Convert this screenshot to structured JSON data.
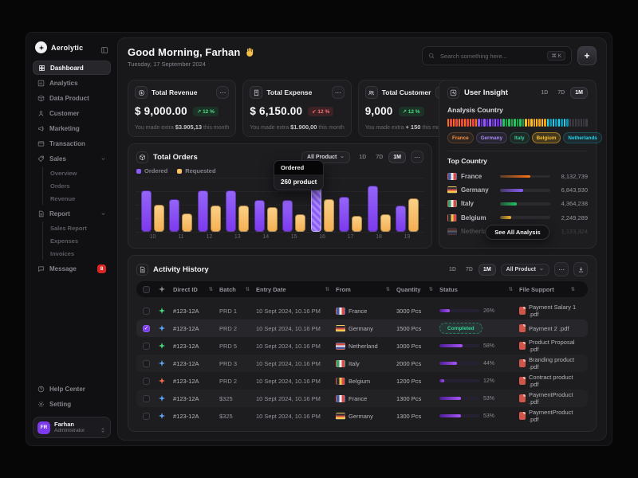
{
  "app": {
    "name": "Aerolytic"
  },
  "sidebar": {
    "items": [
      {
        "label": "Dashboard",
        "icon": "grid",
        "active": true
      },
      {
        "label": "Analytics",
        "icon": "chart"
      },
      {
        "label": "Data Product",
        "icon": "box"
      },
      {
        "label": "Customer",
        "icon": "user"
      },
      {
        "label": "Marketing",
        "icon": "megaphone"
      },
      {
        "label": "Transaction",
        "icon": "card"
      },
      {
        "label": "Sales",
        "icon": "tag",
        "children": [
          "Overview",
          "Orders",
          "Revenue"
        ]
      },
      {
        "label": "Report",
        "icon": "doc",
        "children": [
          "Sales Report",
          "Expenses",
          "Invoices"
        ]
      },
      {
        "label": "Message",
        "icon": "chat",
        "badge": "8"
      }
    ],
    "footer": [
      {
        "label": "Help Center",
        "icon": "help"
      },
      {
        "label": "Setting",
        "icon": "gear"
      }
    ],
    "user": {
      "initials": "FR",
      "name": "Farhan",
      "role": "Administrator"
    }
  },
  "header": {
    "greeting": "Good Morning, Farhan",
    "wave_emoji": "👋",
    "date": "Tuesday, 17 September 2024",
    "search_placeholder": "Search something here...",
    "search_shortcut": "⌘ K",
    "add_label": "+"
  },
  "stats": [
    {
      "title": "Total Revenue",
      "icon": "coin",
      "value": "$ 9,000.00",
      "trend": "12 %",
      "direction": "up",
      "note_prefix": "You made extra",
      "note_strong": "$3.905,13",
      "note_suffix": "this month"
    },
    {
      "title": "Total Expense",
      "icon": "receipt",
      "value": "$ 6,150.00",
      "trend": "12 %",
      "direction": "down",
      "note_prefix": "You made extra",
      "note_strong": "$1.900,00",
      "note_suffix": "this month"
    },
    {
      "title": "Total Customer",
      "icon": "users",
      "value": "9,000",
      "trend": "12 %",
      "direction": "up",
      "note_prefix": "You made extra",
      "note_strong": "+ 150",
      "note_suffix": "this month"
    }
  ],
  "orders": {
    "title": "Total Orders",
    "filter_label": "All Product",
    "ranges": [
      "1D",
      "7D",
      "1M"
    ],
    "active_range": "1M",
    "legend": [
      {
        "label": "Ordered",
        "color": "#8b5cf6"
      },
      {
        "label": "Requested",
        "color": "#f7c164"
      }
    ],
    "tooltip": {
      "label": "Ordered",
      "value": "260 product"
    },
    "chart_data": {
      "type": "bar",
      "categories": [
        "10",
        "11",
        "12",
        "13",
        "14",
        "15",
        "16",
        "17",
        "18",
        "19"
      ],
      "series": [
        {
          "name": "Ordered",
          "color": "#8b5cf6",
          "values": [
            76,
            60,
            77,
            77,
            59,
            59,
            100,
            64,
            86,
            48
          ]
        },
        {
          "name": "Requested",
          "color": "#f7c164",
          "values": [
            50,
            34,
            49,
            48,
            45,
            32,
            60,
            30,
            33,
            62
          ]
        }
      ],
      "value_note": "bar heights in % of max; highlighted Ordered bar at x=16 equals 260 product",
      "highlight_category": "16",
      "highlight_value": 260,
      "unit": "product",
      "grid": "dotted-horizontal",
      "legend_position": "top-left"
    }
  },
  "insight": {
    "title": "User Insight",
    "ranges": [
      "1D",
      "7D",
      "1M"
    ],
    "active_range": "1M",
    "analysis_label": "Analysis Country",
    "segment_groups": [
      {
        "country": "France",
        "color": "#f97316",
        "color2": "#ef4444",
        "count": 11
      },
      {
        "country": "Germany",
        "color": "#8b5cf6",
        "color2": "#6d28d9",
        "count": 9
      },
      {
        "country": "Italy",
        "color": "#22c55e",
        "color2": "#16a34a",
        "count": 8
      },
      {
        "country": "Belgium",
        "color": "#fbbf24",
        "color2": "#f59e0b",
        "count": 8
      },
      {
        "country": "Netherlands",
        "color": "#22d3ee",
        "color2": "#0891b2",
        "count": 8
      },
      {
        "country": "Other",
        "color": "#3d3d44",
        "color2": "#34343a",
        "count": 7
      }
    ],
    "pills": [
      {
        "label": "France",
        "color": "#fb923c"
      },
      {
        "label": "Germany",
        "color": "#a78bfa"
      },
      {
        "label": "Italy",
        "color": "#34d399"
      },
      {
        "label": "Belgium",
        "color": "#fbbf24",
        "highlight": true
      },
      {
        "label": "Netherlands",
        "color": "#22d3ee"
      }
    ],
    "top_label": "Top Country",
    "countries": [
      {
        "name": "France",
        "flag": "fr",
        "value": "8,132,739",
        "pct": 60,
        "color": "#f97316"
      },
      {
        "name": "Germany",
        "flag": "de",
        "value": "6,843,930",
        "pct": 46,
        "color": "#8b5cf6"
      },
      {
        "name": "Italy",
        "flag": "it",
        "value": "4,364,238",
        "pct": 33,
        "color": "#22c55e"
      },
      {
        "name": "Belgium",
        "flag": "be",
        "value": "2,249,289",
        "pct": 22,
        "color": "#f5b52e"
      },
      {
        "name": "Netherland",
        "flag": "nl",
        "value": "1,123,324",
        "pct": 14,
        "color": "#22d3ee",
        "faded": true
      }
    ],
    "see_all_label": "See All Analysis"
  },
  "activity": {
    "title": "Activity History",
    "ranges": [
      "1D",
      "7D",
      "1M"
    ],
    "active_range": "1M",
    "filter_label": "All Product",
    "columns": [
      "Direct ID",
      "Batch",
      "Entry Date",
      "From",
      "Quantity",
      "Status",
      "File Support"
    ],
    "rows": [
      {
        "checked": false,
        "spark": "#4ade80",
        "id": "#123-12A",
        "batch": "PRD 1",
        "date": "10 Sept 2024, 10.16 PM",
        "from": "France",
        "flag": "fr",
        "qty": "3000 Pcs",
        "status": "26%",
        "progress": 26,
        "file": "Payment Salary 1 .pdf"
      },
      {
        "checked": true,
        "spark": "#60a5fa",
        "id": "#123-12A",
        "batch": "PRD 2",
        "date": "10 Sept 2024, 10.16 PM",
        "from": "Germany",
        "flag": "de",
        "qty": "1500 Pcs",
        "status": "Completed",
        "progress": null,
        "file": "Payment 2 .pdf"
      },
      {
        "checked": false,
        "spark": "#4ade80",
        "id": "#123-12A",
        "batch": "PRD 5",
        "date": "10 Sept 2024, 10.16 PM",
        "from": "Netherland",
        "flag": "nl",
        "qty": "1000 Pcs",
        "status": "58%",
        "progress": 58,
        "file": "Product Proposal .pdf"
      },
      {
        "checked": false,
        "spark": "#60a5fa",
        "id": "#123-12A",
        "batch": "PRD 3",
        "date": "10 Sept 2024, 10.16 PM",
        "from": "Italy",
        "flag": "it",
        "qty": "2000 Pcs",
        "status": "44%",
        "progress": 44,
        "file": "Branding product .pdf"
      },
      {
        "checked": false,
        "spark": "#fb7145",
        "id": "#123-12A",
        "batch": "PRD 2",
        "date": "10 Sept 2024, 10.16 PM",
        "from": "Belgium",
        "flag": "be",
        "qty": "1200 Pcs",
        "status": "12%",
        "progress": 12,
        "file": "Contract product .pdf"
      },
      {
        "checked": false,
        "spark": "#60a5fa",
        "id": "#123-12A",
        "batch": "$325",
        "date": "10 Sept 2024, 10.16 PM",
        "from": "France",
        "flag": "fr",
        "qty": "1300 Pcs",
        "status": "53%",
        "progress": 53,
        "file": "PaymentProduct .pdf"
      },
      {
        "checked": false,
        "spark": "#60a5fa",
        "id": "#123-12A",
        "batch": "$325",
        "date": "10 Sept 2024, 10.16 PM",
        "from": "Germany",
        "flag": "de",
        "qty": "1300 Pcs",
        "status": "53%",
        "progress": 53,
        "file": "PaymentProduct .pdf"
      }
    ]
  },
  "colors": {
    "accent": "#8b5cf6",
    "positive": "#22c55e",
    "negative": "#ef4444",
    "amber": "#f7c164",
    "badge_red": "#dc2626"
  }
}
